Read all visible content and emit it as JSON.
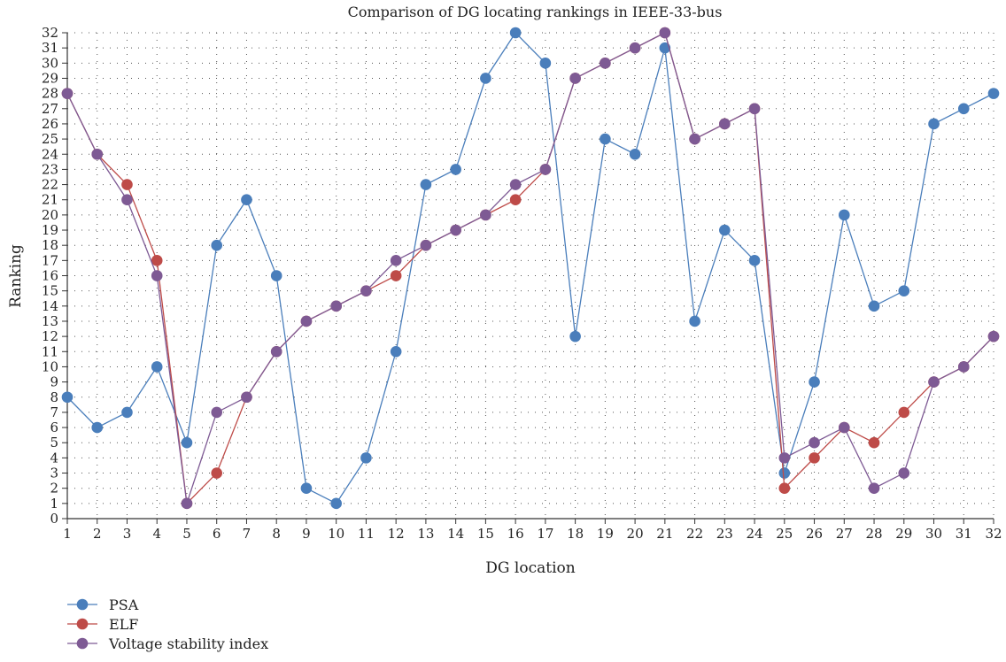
{
  "chart_data": {
    "type": "line",
    "title": "Comparison of DG locating rankings in IEEE-33-bus",
    "xlabel": "DG location",
    "ylabel": "Ranking",
    "x": [
      1,
      2,
      3,
      4,
      5,
      6,
      7,
      8,
      9,
      10,
      11,
      12,
      13,
      14,
      15,
      16,
      17,
      18,
      19,
      20,
      21,
      22,
      23,
      24,
      25,
      26,
      27,
      28,
      29,
      30,
      31,
      32
    ],
    "xlim": [
      1,
      32
    ],
    "ylim": [
      0,
      32
    ],
    "grid": true,
    "legend_position": "bottom-left",
    "series": [
      {
        "name": "PSA",
        "color": "#4a7ebb",
        "values": [
          8,
          6,
          7,
          10,
          5,
          18,
          21,
          16,
          2,
          1,
          4,
          11,
          22,
          23,
          29,
          32,
          30,
          12,
          25,
          24,
          31,
          13,
          19,
          17,
          3,
          9,
          20,
          14,
          15,
          26,
          27,
          28
        ]
      },
      {
        "name": "ELF",
        "color": "#be4b48",
        "values": [
          28,
          24,
          22,
          17,
          1,
          3,
          8,
          11,
          13,
          14,
          15,
          16,
          18,
          19,
          20,
          21,
          23,
          29,
          30,
          31,
          32,
          25,
          26,
          27,
          2,
          4,
          6,
          5,
          7,
          9,
          10,
          12
        ]
      },
      {
        "name": "Voltage stability index",
        "color": "#7e5a94",
        "values": [
          28,
          24,
          21,
          16,
          1,
          7,
          8,
          11,
          13,
          14,
          15,
          17,
          18,
          19,
          20,
          22,
          23,
          29,
          30,
          31,
          32,
          25,
          26,
          27,
          4,
          5,
          6,
          2,
          3,
          9,
          10,
          12
        ]
      }
    ]
  }
}
